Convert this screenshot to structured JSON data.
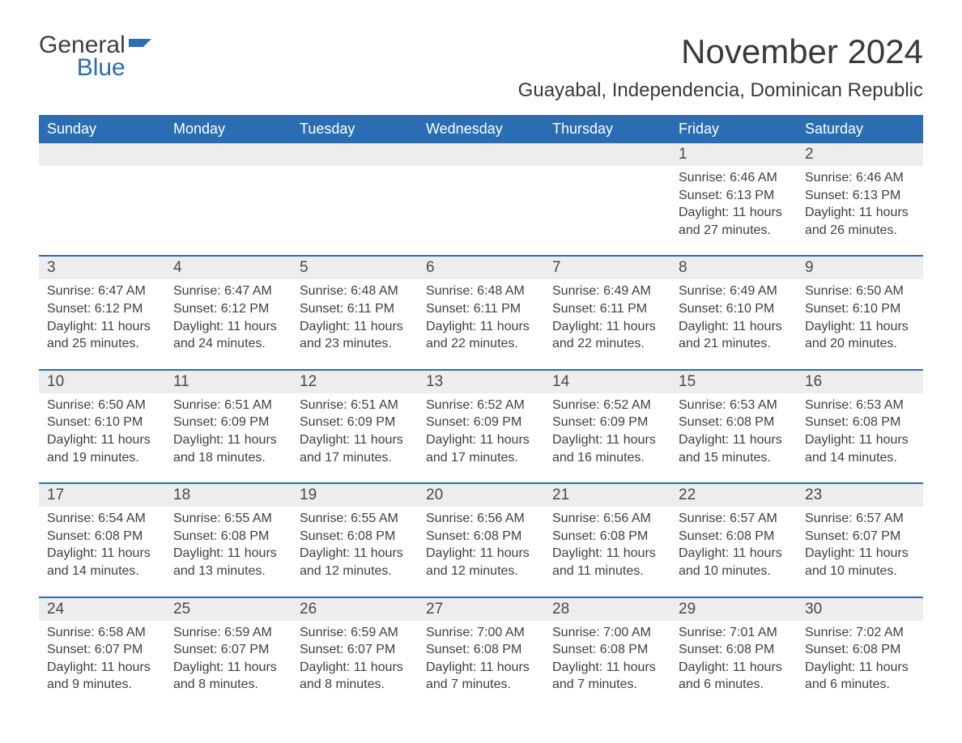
{
  "logo": {
    "word1": "General",
    "word2": "Blue",
    "accent_color": "#2a6db3"
  },
  "title": "November 2024",
  "location": "Guayabal, Independencia, Dominican Republic",
  "colors": {
    "header_bg": "#2a6db3",
    "header_fg": "#ffffff",
    "daynum_bg": "#ededed",
    "text": "#404040",
    "rule": "#2a6db3"
  },
  "weekdays": [
    "Sunday",
    "Monday",
    "Tuesday",
    "Wednesday",
    "Thursday",
    "Friday",
    "Saturday"
  ],
  "weeks": [
    [
      {
        "day": "",
        "sunrise": "",
        "sunset": "",
        "daylight": ""
      },
      {
        "day": "",
        "sunrise": "",
        "sunset": "",
        "daylight": ""
      },
      {
        "day": "",
        "sunrise": "",
        "sunset": "",
        "daylight": ""
      },
      {
        "day": "",
        "sunrise": "",
        "sunset": "",
        "daylight": ""
      },
      {
        "day": "",
        "sunrise": "",
        "sunset": "",
        "daylight": ""
      },
      {
        "day": "1",
        "sunrise": "Sunrise: 6:46 AM",
        "sunset": "Sunset: 6:13 PM",
        "daylight": "Daylight: 11 hours and 27 minutes."
      },
      {
        "day": "2",
        "sunrise": "Sunrise: 6:46 AM",
        "sunset": "Sunset: 6:13 PM",
        "daylight": "Daylight: 11 hours and 26 minutes."
      }
    ],
    [
      {
        "day": "3",
        "sunrise": "Sunrise: 6:47 AM",
        "sunset": "Sunset: 6:12 PM",
        "daylight": "Daylight: 11 hours and 25 minutes."
      },
      {
        "day": "4",
        "sunrise": "Sunrise: 6:47 AM",
        "sunset": "Sunset: 6:12 PM",
        "daylight": "Daylight: 11 hours and 24 minutes."
      },
      {
        "day": "5",
        "sunrise": "Sunrise: 6:48 AM",
        "sunset": "Sunset: 6:11 PM",
        "daylight": "Daylight: 11 hours and 23 minutes."
      },
      {
        "day": "6",
        "sunrise": "Sunrise: 6:48 AM",
        "sunset": "Sunset: 6:11 PM",
        "daylight": "Daylight: 11 hours and 22 minutes."
      },
      {
        "day": "7",
        "sunrise": "Sunrise: 6:49 AM",
        "sunset": "Sunset: 6:11 PM",
        "daylight": "Daylight: 11 hours and 22 minutes."
      },
      {
        "day": "8",
        "sunrise": "Sunrise: 6:49 AM",
        "sunset": "Sunset: 6:10 PM",
        "daylight": "Daylight: 11 hours and 21 minutes."
      },
      {
        "day": "9",
        "sunrise": "Sunrise: 6:50 AM",
        "sunset": "Sunset: 6:10 PM",
        "daylight": "Daylight: 11 hours and 20 minutes."
      }
    ],
    [
      {
        "day": "10",
        "sunrise": "Sunrise: 6:50 AM",
        "sunset": "Sunset: 6:10 PM",
        "daylight": "Daylight: 11 hours and 19 minutes."
      },
      {
        "day": "11",
        "sunrise": "Sunrise: 6:51 AM",
        "sunset": "Sunset: 6:09 PM",
        "daylight": "Daylight: 11 hours and 18 minutes."
      },
      {
        "day": "12",
        "sunrise": "Sunrise: 6:51 AM",
        "sunset": "Sunset: 6:09 PM",
        "daylight": "Daylight: 11 hours and 17 minutes."
      },
      {
        "day": "13",
        "sunrise": "Sunrise: 6:52 AM",
        "sunset": "Sunset: 6:09 PM",
        "daylight": "Daylight: 11 hours and 17 minutes."
      },
      {
        "day": "14",
        "sunrise": "Sunrise: 6:52 AM",
        "sunset": "Sunset: 6:09 PM",
        "daylight": "Daylight: 11 hours and 16 minutes."
      },
      {
        "day": "15",
        "sunrise": "Sunrise: 6:53 AM",
        "sunset": "Sunset: 6:08 PM",
        "daylight": "Daylight: 11 hours and 15 minutes."
      },
      {
        "day": "16",
        "sunrise": "Sunrise: 6:53 AM",
        "sunset": "Sunset: 6:08 PM",
        "daylight": "Daylight: 11 hours and 14 minutes."
      }
    ],
    [
      {
        "day": "17",
        "sunrise": "Sunrise: 6:54 AM",
        "sunset": "Sunset: 6:08 PM",
        "daylight": "Daylight: 11 hours and 14 minutes."
      },
      {
        "day": "18",
        "sunrise": "Sunrise: 6:55 AM",
        "sunset": "Sunset: 6:08 PM",
        "daylight": "Daylight: 11 hours and 13 minutes."
      },
      {
        "day": "19",
        "sunrise": "Sunrise: 6:55 AM",
        "sunset": "Sunset: 6:08 PM",
        "daylight": "Daylight: 11 hours and 12 minutes."
      },
      {
        "day": "20",
        "sunrise": "Sunrise: 6:56 AM",
        "sunset": "Sunset: 6:08 PM",
        "daylight": "Daylight: 11 hours and 12 minutes."
      },
      {
        "day": "21",
        "sunrise": "Sunrise: 6:56 AM",
        "sunset": "Sunset: 6:08 PM",
        "daylight": "Daylight: 11 hours and 11 minutes."
      },
      {
        "day": "22",
        "sunrise": "Sunrise: 6:57 AM",
        "sunset": "Sunset: 6:08 PM",
        "daylight": "Daylight: 11 hours and 10 minutes."
      },
      {
        "day": "23",
        "sunrise": "Sunrise: 6:57 AM",
        "sunset": "Sunset: 6:07 PM",
        "daylight": "Daylight: 11 hours and 10 minutes."
      }
    ],
    [
      {
        "day": "24",
        "sunrise": "Sunrise: 6:58 AM",
        "sunset": "Sunset: 6:07 PM",
        "daylight": "Daylight: 11 hours and 9 minutes."
      },
      {
        "day": "25",
        "sunrise": "Sunrise: 6:59 AM",
        "sunset": "Sunset: 6:07 PM",
        "daylight": "Daylight: 11 hours and 8 minutes."
      },
      {
        "day": "26",
        "sunrise": "Sunrise: 6:59 AM",
        "sunset": "Sunset: 6:07 PM",
        "daylight": "Daylight: 11 hours and 8 minutes."
      },
      {
        "day": "27",
        "sunrise": "Sunrise: 7:00 AM",
        "sunset": "Sunset: 6:08 PM",
        "daylight": "Daylight: 11 hours and 7 minutes."
      },
      {
        "day": "28",
        "sunrise": "Sunrise: 7:00 AM",
        "sunset": "Sunset: 6:08 PM",
        "daylight": "Daylight: 11 hours and 7 minutes."
      },
      {
        "day": "29",
        "sunrise": "Sunrise: 7:01 AM",
        "sunset": "Sunset: 6:08 PM",
        "daylight": "Daylight: 11 hours and 6 minutes."
      },
      {
        "day": "30",
        "sunrise": "Sunrise: 7:02 AM",
        "sunset": "Sunset: 6:08 PM",
        "daylight": "Daylight: 11 hours and 6 minutes."
      }
    ]
  ]
}
